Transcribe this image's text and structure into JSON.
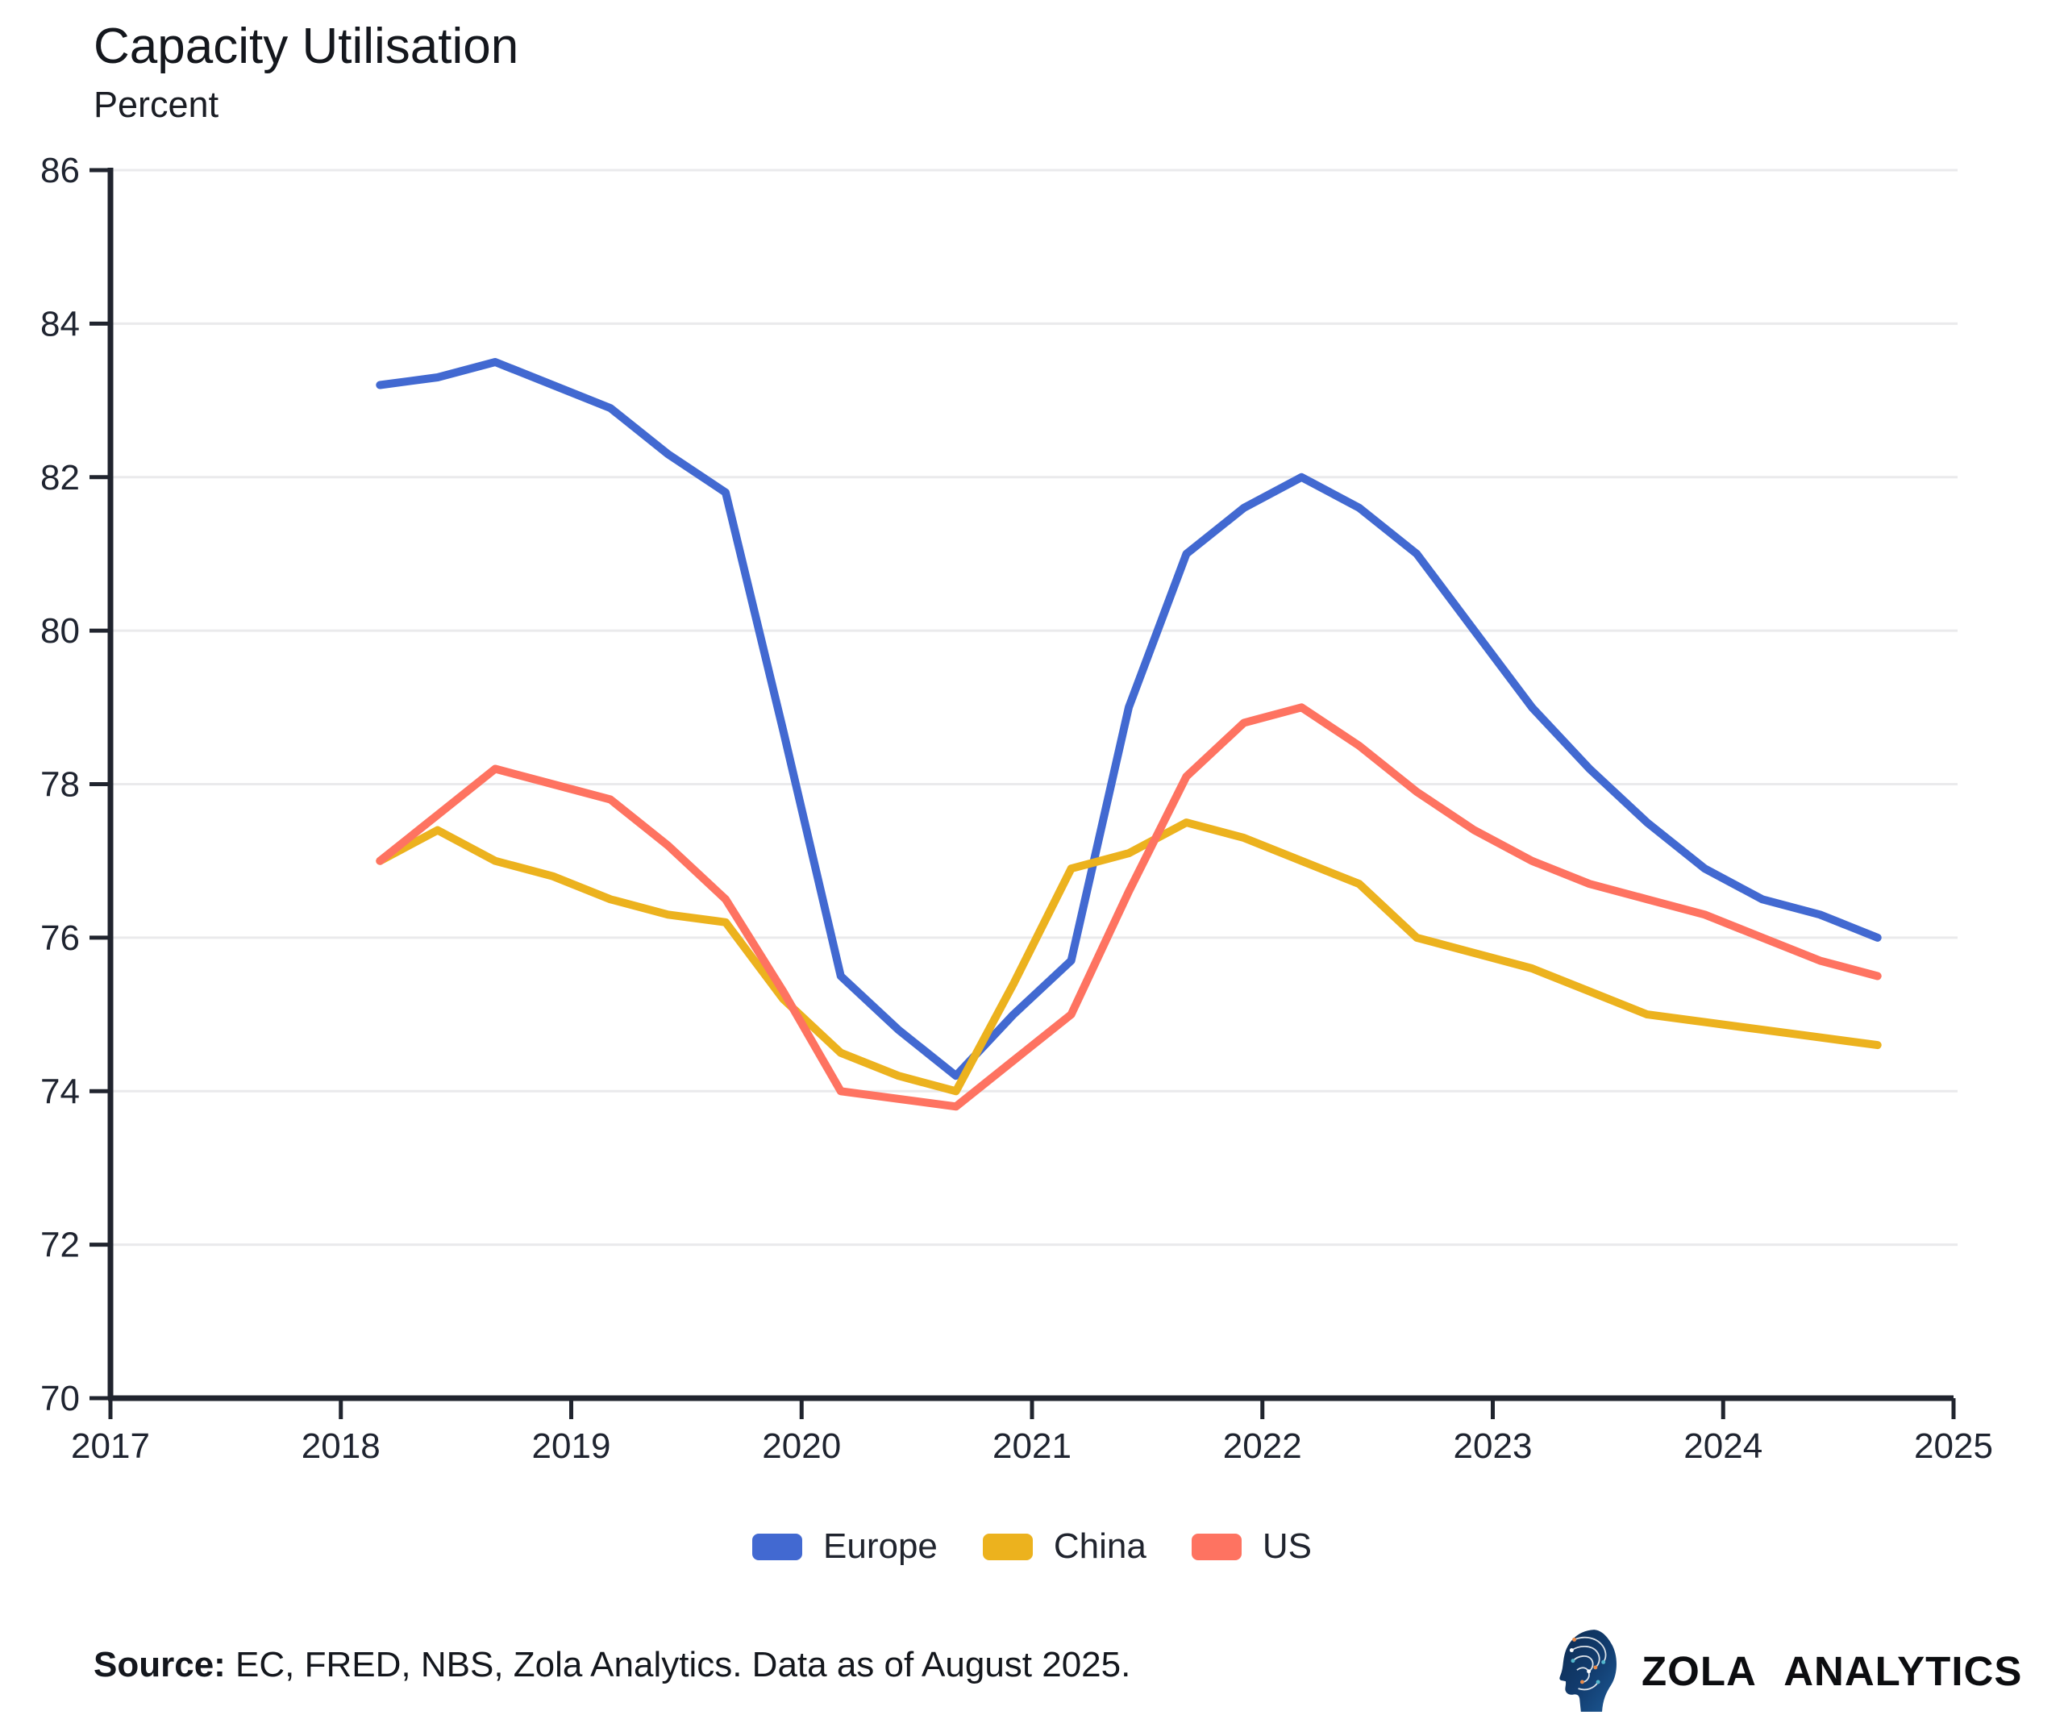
{
  "header": {
    "title": "Capacity Utilisation",
    "subtitle": "Percent"
  },
  "legend": [
    {
      "label": "Europe",
      "color": "#4269d1"
    },
    {
      "label": "China",
      "color": "#ecb21e"
    },
    {
      "label": "US",
      "color": "#fe7361"
    }
  ],
  "footer": {
    "source_label": "Source:",
    "source_text": " EC, FRED, NBS, Zola Analytics. Data as of August 2025.",
    "brand": "ZOLA ANALYTICS"
  },
  "colors": {
    "axis": "#20242e",
    "grid": "#eaeaec",
    "tick_text": "#1f2430",
    "logo_navy_dark": "#0d2b50",
    "logo_navy_light": "#1d5a96",
    "logo_dot_orange": "#e88a4a",
    "logo_dot_teal": "#53b7cd"
  },
  "chart_data": {
    "type": "line",
    "title": "Capacity Utilisation",
    "ylabel": "Percent",
    "xlabel": "",
    "xlim": [
      2017,
      2025
    ],
    "ylim": [
      70,
      86
    ],
    "xticks": [
      2017,
      2018,
      2019,
      2020,
      2021,
      2022,
      2023,
      2024,
      2025
    ],
    "yticks": [
      70,
      72,
      74,
      76,
      78,
      80,
      82,
      84,
      86
    ],
    "grid": "horizontal",
    "legend_position": "bottom",
    "x": [
      2018.17,
      2018.42,
      2018.67,
      2018.92,
      2019.17,
      2019.42,
      2019.67,
      2019.92,
      2020.17,
      2020.42,
      2020.67,
      2020.92,
      2021.17,
      2021.42,
      2021.67,
      2021.92,
      2022.17,
      2022.42,
      2022.67,
      2022.92,
      2023.17,
      2023.42,
      2023.67,
      2023.92,
      2024.17,
      2024.42,
      2024.67
    ],
    "series": [
      {
        "name": "Europe",
        "color": "#4269d1",
        "values": [
          83.2,
          83.3,
          83.5,
          83.2,
          82.9,
          82.3,
          81.8,
          78.7,
          75.5,
          74.8,
          74.2,
          75.0,
          75.7,
          79.0,
          81.0,
          81.6,
          82.0,
          81.6,
          81.0,
          80.0,
          79.0,
          78.2,
          77.5,
          76.9,
          76.5,
          76.3,
          76.0
        ]
      },
      {
        "name": "China",
        "color": "#ecb21e",
        "values": [
          77.0,
          77.4,
          77.0,
          76.8,
          76.5,
          76.3,
          76.2,
          75.2,
          74.5,
          74.2,
          74.0,
          75.4,
          76.9,
          77.1,
          77.5,
          77.3,
          77.0,
          76.7,
          76.0,
          75.8,
          75.6,
          75.3,
          75.0,
          74.9,
          74.8,
          74.7,
          74.6
        ]
      },
      {
        "name": "US",
        "color": "#fe7361",
        "values": [
          77.0,
          77.6,
          78.2,
          78.0,
          77.8,
          77.2,
          76.5,
          75.3,
          74.0,
          73.9,
          73.8,
          74.4,
          75.0,
          76.6,
          78.1,
          78.8,
          79.0,
          78.5,
          77.9,
          77.4,
          77.0,
          76.7,
          76.5,
          76.3,
          76.0,
          75.7,
          75.5
        ]
      }
    ]
  }
}
